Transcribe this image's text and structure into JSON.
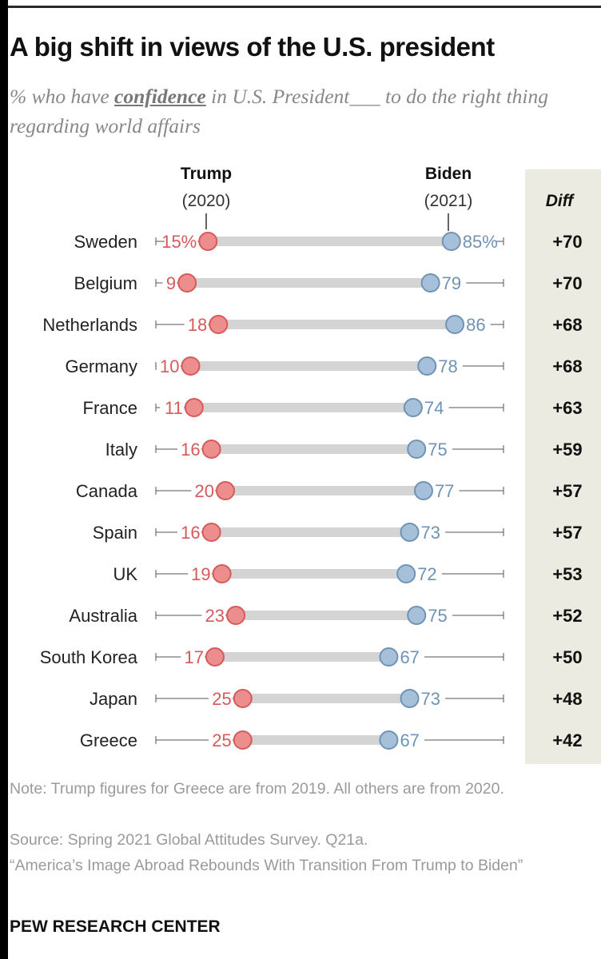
{
  "title": "A big shift in views of the U.S. president",
  "subtitle": {
    "before": "% who have ",
    "emphasis": "confidence",
    "after": " in U.S. President___ to do the right thing regarding world affairs"
  },
  "headers": {
    "trump_name": "Trump",
    "trump_year": "(2020)",
    "biden_name": "Biden",
    "biden_year": "(2021)",
    "diff": "Diff"
  },
  "chart_data": {
    "type": "dot-plot",
    "title": "A big shift in views of the U.S. president",
    "xlim": [
      0,
      100
    ],
    "series": [
      {
        "name": "Trump (2020)",
        "color": "#d65a5a"
      },
      {
        "name": "Biden (2021)",
        "color": "#6f93b5"
      }
    ],
    "rows": [
      {
        "country": "Sweden",
        "trump_label": "15%",
        "biden_label": "85%",
        "trump": 15,
        "biden": 85,
        "diff": "+70"
      },
      {
        "country": "Belgium",
        "trump_label": "9",
        "biden_label": "79",
        "trump": 9,
        "biden": 79,
        "diff": "+70"
      },
      {
        "country": "Netherlands",
        "trump_label": "18",
        "biden_label": "86",
        "trump": 18,
        "biden": 86,
        "diff": "+68"
      },
      {
        "country": "Germany",
        "trump_label": "10",
        "biden_label": "78",
        "trump": 10,
        "biden": 78,
        "diff": "+68"
      },
      {
        "country": "France",
        "trump_label": "11",
        "biden_label": "74",
        "trump": 11,
        "biden": 74,
        "diff": "+63"
      },
      {
        "country": "Italy",
        "trump_label": "16",
        "biden_label": "75",
        "trump": 16,
        "biden": 75,
        "diff": "+59"
      },
      {
        "country": "Canada",
        "trump_label": "20",
        "biden_label": "77",
        "trump": 20,
        "biden": 77,
        "diff": "+57"
      },
      {
        "country": "Spain",
        "trump_label": "16",
        "biden_label": "73",
        "trump": 16,
        "biden": 73,
        "diff": "+57"
      },
      {
        "country": "UK",
        "trump_label": "19",
        "biden_label": "72",
        "trump": 19,
        "biden": 72,
        "diff": "+53"
      },
      {
        "country": "Australia",
        "trump_label": "23",
        "biden_label": "75",
        "trump": 23,
        "biden": 75,
        "diff": "+52"
      },
      {
        "country": "South Korea",
        "trump_label": "17",
        "biden_label": "67",
        "trump": 17,
        "biden": 67,
        "diff": "+50"
      },
      {
        "country": "Japan",
        "trump_label": "25",
        "biden_label": "73",
        "trump": 25,
        "biden": 73,
        "diff": "+48"
      },
      {
        "country": "Greece",
        "trump_label": "25",
        "biden_label": "67",
        "trump": 25,
        "biden": 67,
        "diff": "+42"
      }
    ]
  },
  "notes": {
    "note": "Note: Trump figures for Greece are from 2019. All others are from 2020.",
    "source": "Source: Spring 2021 Global Attitudes Survey. Q21a.",
    "report": "“America’s Image Abroad Rebounds With Transition From Trump to Biden”"
  },
  "brand": "PEW RESEARCH CENTER"
}
